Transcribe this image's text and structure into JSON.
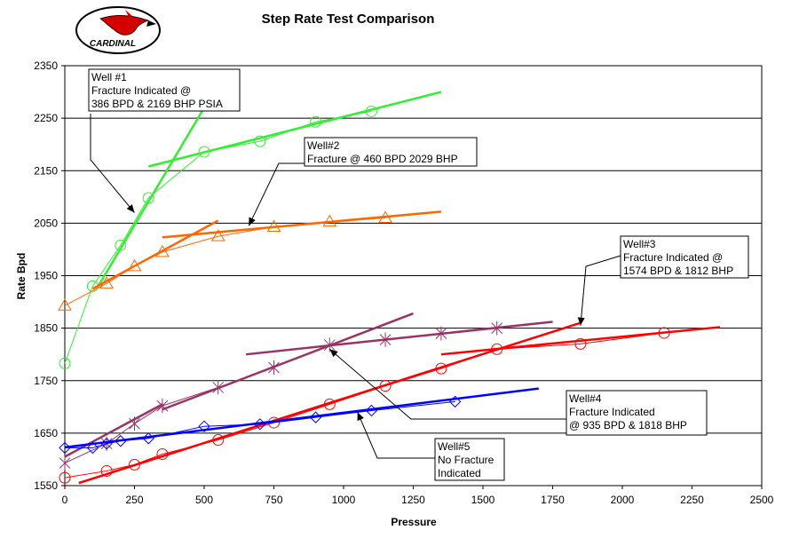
{
  "logo": {
    "text": "CARDINAL"
  },
  "chart_data": {
    "type": "scatter",
    "title": "Step Rate Test Comparison",
    "xlabel": "Pressure",
    "ylabel": "Rate Bpd",
    "xlim": [
      0,
      2500
    ],
    "ylim": [
      1550,
      2350
    ],
    "xticks": [
      0,
      250,
      500,
      750,
      1000,
      1250,
      1500,
      1750,
      2000,
      2250,
      2500
    ],
    "yticks": [
      1550,
      1650,
      1750,
      1850,
      1950,
      2050,
      2150,
      2250,
      2350
    ],
    "grid": "horizontal",
    "series": [
      {
        "color": "#33ee33",
        "marker": "circle",
        "points": [
          [
            0,
            1783
          ],
          [
            100,
            1930
          ],
          [
            200,
            2008
          ],
          [
            300,
            2098
          ],
          [
            500,
            2186
          ],
          [
            700,
            2206
          ],
          [
            900,
            2243
          ],
          [
            1100,
            2263
          ]
        ],
        "trend_lines": [
          [
            [
              120,
              1930
            ],
            [
              500,
              2270
            ]
          ],
          [
            [
              300,
              2158
            ],
            [
              1350,
              2300
            ]
          ]
        ]
      },
      {
        "color": "#ff6600",
        "marker": "triangle",
        "points": [
          [
            0,
            1893
          ],
          [
            150,
            1935
          ],
          [
            250,
            1968
          ],
          [
            350,
            1995
          ],
          [
            550,
            2025
          ],
          [
            750,
            2043
          ],
          [
            950,
            2053
          ],
          [
            1150,
            2060
          ]
        ],
        "trend_lines": [
          [
            [
              100,
              1925
            ],
            [
              550,
              2055
            ]
          ],
          [
            [
              350,
              2023
            ],
            [
              1350,
              2072
            ]
          ]
        ]
      },
      {
        "color": "#993366",
        "marker": "star",
        "points": [
          [
            0,
            1593
          ],
          [
            150,
            1630
          ],
          [
            250,
            1668
          ],
          [
            350,
            1702
          ],
          [
            550,
            1737
          ],
          [
            750,
            1775
          ],
          [
            950,
            1818
          ],
          [
            1150,
            1828
          ],
          [
            1350,
            1840
          ],
          [
            1550,
            1850
          ]
        ],
        "trend_lines": [
          [
            [
              0,
              1605
            ],
            [
              350,
              1705
            ]
          ],
          [
            [
              350,
              1695
            ],
            [
              1250,
              1878
            ]
          ],
          [
            [
              650,
              1800
            ],
            [
              1750,
              1862
            ]
          ]
        ]
      },
      {
        "color": "#ff0000",
        "marker": "circle",
        "points": [
          [
            0,
            1565
          ],
          [
            150,
            1578
          ],
          [
            250,
            1590
          ],
          [
            350,
            1610
          ],
          [
            550,
            1637
          ],
          [
            750,
            1670
          ],
          [
            950,
            1705
          ],
          [
            1150,
            1740
          ],
          [
            1350,
            1773
          ],
          [
            1550,
            1810
          ],
          [
            1850,
            1820
          ],
          [
            2150,
            1841
          ]
        ],
        "trend_lines": [
          [
            [
              50,
              1555
            ],
            [
              1850,
              1860
            ]
          ],
          [
            [
              1350,
              1800
            ],
            [
              2350,
              1852
            ]
          ]
        ]
      },
      {
        "color": "#0000ff",
        "marker": "diamond",
        "points": [
          [
            0,
            1622
          ],
          [
            100,
            1622
          ],
          [
            150,
            1630
          ],
          [
            200,
            1635
          ],
          [
            300,
            1640
          ],
          [
            500,
            1663
          ],
          [
            700,
            1667
          ],
          [
            900,
            1680
          ],
          [
            1100,
            1693
          ],
          [
            1400,
            1710
          ]
        ],
        "trend_lines": [
          [
            [
              0,
              1623
            ],
            [
              1700,
              1735
            ]
          ]
        ]
      }
    ],
    "annotations": [
      {
        "lines": [
          "Well #1",
          "Fracture Indicated @",
          "386 BPD & 2169 BHP PSIA"
        ],
        "arrow_to": [
          250,
          2070
        ]
      },
      {
        "lines": [
          "Well#2",
          "Fracture @ 460 BPD 2029 BHP"
        ],
        "arrow_to": [
          660,
          2045
        ]
      },
      {
        "lines": [
          "Well#3",
          "Fracture Indicated @",
          "1574 BPD & 1812 BHP"
        ],
        "arrow_to": [
          1850,
          1855
        ]
      },
      {
        "lines": [
          "Well#4",
          "Fracture Indicated",
          "@ 935 BPD & 1818 BHP"
        ],
        "arrow_to": [
          950,
          1810
        ]
      },
      {
        "lines": [
          "Well#5",
          "No Fracture",
          "Indicated"
        ],
        "arrow_to": [
          1050,
          1690
        ]
      }
    ]
  }
}
